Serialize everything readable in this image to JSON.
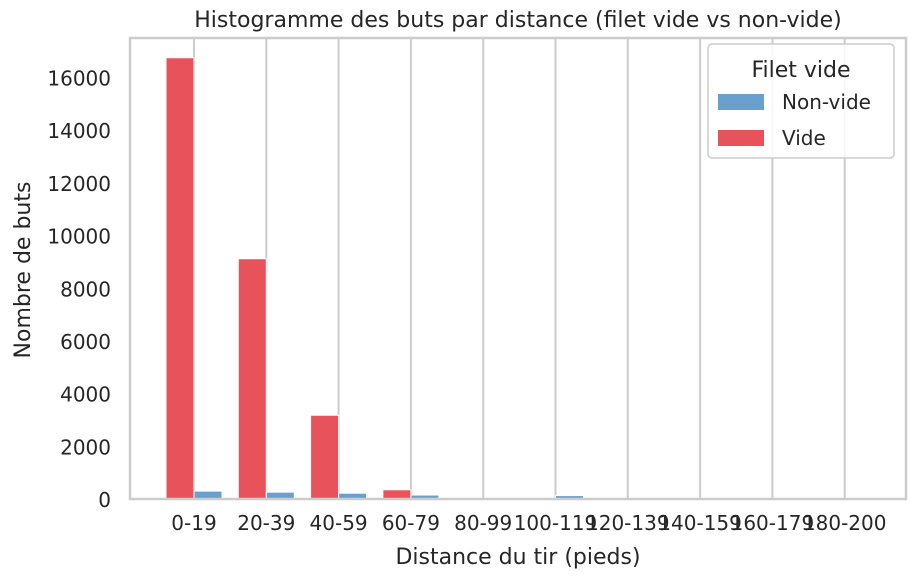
{
  "chart_data": {
    "type": "bar",
    "title": "Histogramme des buts par distance (filet vide vs non-vide)",
    "xlabel": "Distance du tir (pieds)",
    "ylabel": "Nombre de buts",
    "categories": [
      "0-19",
      "20-39",
      "40-59",
      "60-79",
      "80-99",
      "100-119",
      "120-139",
      "140-159",
      "160-179",
      "180-200"
    ],
    "yticks": [
      0,
      2000,
      4000,
      6000,
      8000,
      10000,
      12000,
      14000,
      16000
    ],
    "ylim": [
      0,
      17500
    ],
    "grid": true,
    "legend": {
      "title": "Filet vide",
      "position": "top-right"
    },
    "series": [
      {
        "name": "Vide",
        "color": "#e8525a",
        "values": [
          16750,
          9120,
          3180,
          350,
          0,
          0,
          0,
          0,
          0,
          0
        ]
      },
      {
        "name": "Non-vide",
        "color": "#6aa0ce",
        "values": [
          300,
          260,
          220,
          150,
          0,
          130,
          0,
          0,
          0,
          0
        ]
      }
    ],
    "legend_order": [
      "Non-vide",
      "Vide"
    ]
  }
}
